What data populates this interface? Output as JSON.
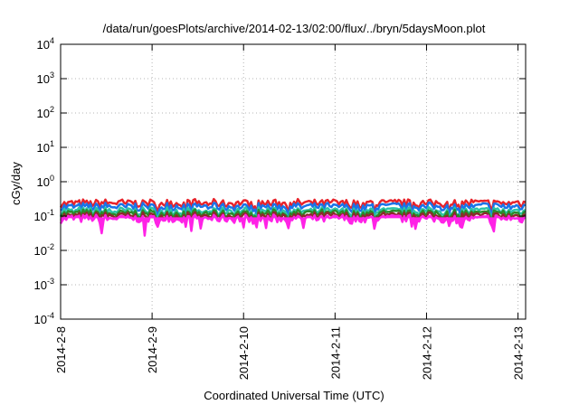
{
  "chart_data": {
    "type": "line",
    "title": "/data/run/goesPlots/archive/2014-02-13/02:00/flux/../bryn/5daysMoon.plot",
    "xlabel": "Coordinated Universal Time (UTC)",
    "ylabel": "cGy/day",
    "yscale": "log",
    "ylim": [
      0.0001,
      10000
    ],
    "y_ticks": [
      {
        "base": "10",
        "exp": "4"
      },
      {
        "base": "10",
        "exp": "3"
      },
      {
        "base": "10",
        "exp": "2"
      },
      {
        "base": "10",
        "exp": "1"
      },
      {
        "base": "10",
        "exp": "0"
      },
      {
        "base": "10",
        "exp": "-1"
      },
      {
        "base": "10",
        "exp": "-2"
      },
      {
        "base": "10",
        "exp": "-3"
      },
      {
        "base": "10",
        "exp": "-4"
      }
    ],
    "x_ticks": [
      "2014-2-8",
      "2014-2-9",
      "2014-2-10",
      "2014-2-11",
      "2014-2-12",
      "2014-2-13"
    ],
    "xlim": [
      "2014-02-08 00:00",
      "2014-02-13 02:00"
    ],
    "grid": true,
    "series": [
      {
        "color": "#e8232b",
        "level": 0.24,
        "fill": false
      },
      {
        "color": "#1a73e8",
        "level": 0.19,
        "fill": false
      },
      {
        "color": "#2cc4a8",
        "level": 0.14,
        "fill": false
      },
      {
        "color": "#2a8a2a",
        "level": 0.12,
        "fill": false
      },
      {
        "color": "#8b2b2b",
        "level": 0.1,
        "fill": false
      },
      {
        "color": "#ff22e6",
        "level": 0.085,
        "fill": true
      }
    ]
  }
}
